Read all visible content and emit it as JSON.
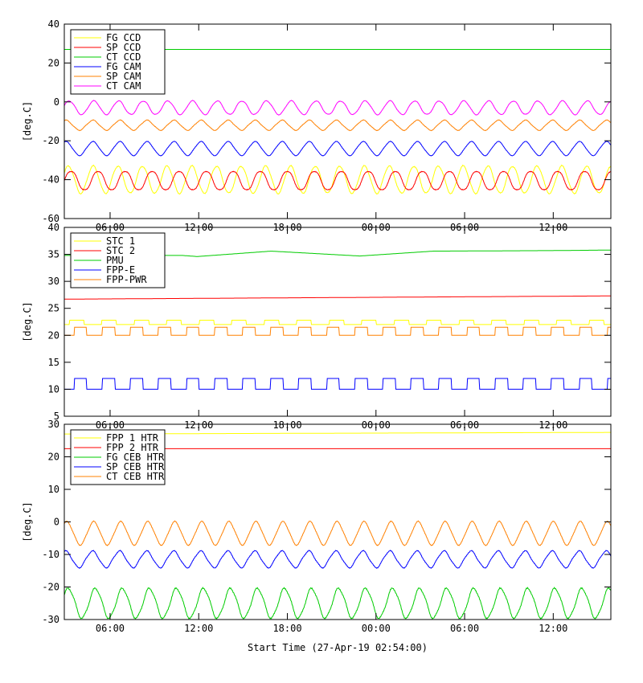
{
  "chart_data": [
    {
      "type": "line",
      "ylabel": "[deg.C]",
      "ylim": [
        -60,
        40
      ],
      "yticks": [
        -60,
        -40,
        -20,
        0,
        20,
        40
      ],
      "legend_placement": "top-left",
      "series": [
        {
          "name": "FG CCD",
          "color": "#ffff00",
          "shape": "sine",
          "mean": -40,
          "amp": 7,
          "period_h": 1.67,
          "phase": 0.5
        },
        {
          "name": "SP CCD",
          "color": "#ff0000",
          "shape": "sine",
          "mean": -40.5,
          "amp": 5,
          "period_h": 1.83,
          "phase": 0
        },
        {
          "name": "CT CCD",
          "color": "#00cc00",
          "shape": "const",
          "value": 27
        },
        {
          "name": "FG CAM",
          "color": "#0000ff",
          "shape": "sine",
          "mean": -24,
          "amp": 3.5,
          "period_h": 1.83,
          "phase": 1.2
        },
        {
          "name": "SP CAM",
          "color": "#ff8000",
          "shape": "sine",
          "mean": -12,
          "amp": 2.5,
          "period_h": 1.83,
          "phase": 1.2
        },
        {
          "name": "CT CAM",
          "color": "#ff00ff",
          "shape": "sine",
          "mean": -3,
          "amp": 3.5,
          "period_h": 1.67,
          "phase": 0.3
        }
      ]
    },
    {
      "type": "line",
      "ylabel": "[deg.C]",
      "ylim": [
        5,
        40
      ],
      "yticks": [
        5,
        10,
        15,
        20,
        25,
        30,
        35,
        40
      ],
      "legend_placement": "top-left",
      "series": [
        {
          "name": "STC 1",
          "color": "#ffff00",
          "shape": "square",
          "low": 22,
          "high": 22.8,
          "period_h": 2.2,
          "phase": 0.4
        },
        {
          "name": "STC 2",
          "color": "#ff0000",
          "shape": "const",
          "value": 26.7,
          "value_end": 27.3
        },
        {
          "name": "PMU",
          "color": "#00cc00",
          "shape": "steps",
          "points": [
            [
              0,
              34.8
            ],
            [
              8,
              34.8
            ],
            [
              9,
              34.6
            ],
            [
              14,
              35.6
            ],
            [
              20,
              34.7
            ],
            [
              25,
              35.6
            ],
            [
              33,
              35.7
            ],
            [
              37,
              35.8
            ]
          ]
        },
        {
          "name": "FPP-E",
          "color": "#0000ff",
          "shape": "square",
          "low": 10,
          "high": 12,
          "period_h": 1.9,
          "phase": 0.2
        },
        {
          "name": "FPP-PWR",
          "color": "#ff8000",
          "shape": "square",
          "low": 20,
          "high": 21.5,
          "period_h": 1.9,
          "phase": 0.2
        }
      ]
    },
    {
      "type": "line",
      "xlabel": "Start Time (27-Apr-19 02:54:00)",
      "ylabel": "[deg.C]",
      "ylim": [
        -30,
        30
      ],
      "yticks": [
        -30,
        -20,
        -10,
        0,
        10,
        20,
        30
      ],
      "xticks": [
        "06:00",
        "12:00",
        "18:00",
        "00:00",
        "06:00",
        "12:00"
      ],
      "xticks_hours": [
        3.1,
        9.1,
        15.1,
        21.1,
        27.1,
        33.1
      ],
      "xlim_hours": [
        0,
        37
      ],
      "legend_placement": "top-left",
      "series": [
        {
          "name": "FPP 1 HTR",
          "color": "#ffff00",
          "shape": "const",
          "value": 27,
          "value_end": 27.5
        },
        {
          "name": "FPP 2 HTR",
          "color": "#ff0000",
          "shape": "const",
          "value": 22.5
        },
        {
          "name": "FG CEB HTR",
          "color": "#00cc00",
          "shape": "sine",
          "mean": -25,
          "amp": 4.5,
          "period_h": 1.83,
          "phase": 0.6
        },
        {
          "name": "SP CEB HTR",
          "color": "#0000ff",
          "shape": "sine",
          "mean": -11.5,
          "amp": 2.5,
          "period_h": 1.83,
          "phase": 1.3
        },
        {
          "name": "CT CEB HTR",
          "color": "#ff8000",
          "shape": "sine",
          "mean": -3.5,
          "amp": 3.5,
          "period_h": 1.83,
          "phase": 1.0
        }
      ]
    }
  ]
}
